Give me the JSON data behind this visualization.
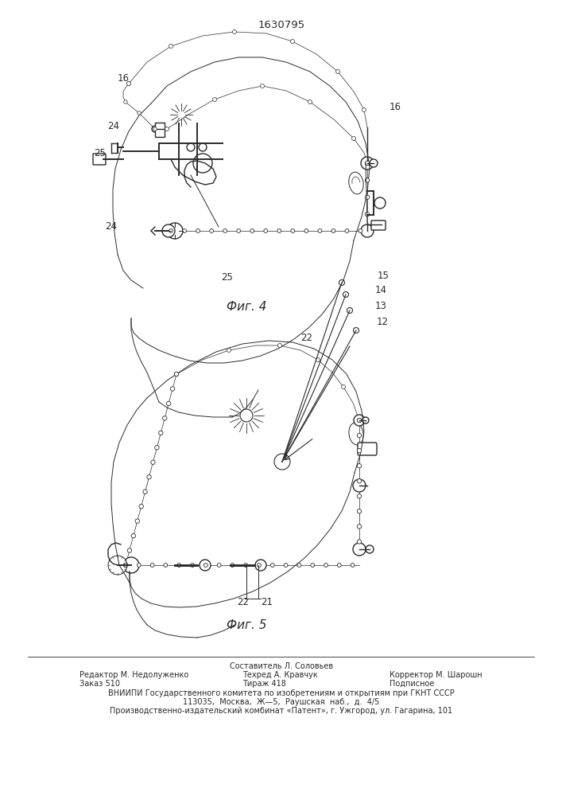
{
  "patent_number": "1630795",
  "fig4_label": "Фиг. 4",
  "fig5_label": "Фиг. 5",
  "footer_line1": "Составитель Л. Соловьев",
  "footer_line2_col1": "Редактор М. Недолуженко",
  "footer_line2_col2": "Техред А. Кравчук",
  "footer_line2_col3": "Корректор М. Шарошн",
  "footer_line3_col1": "Заказ 510",
  "footer_line3_col2": "Тираж 418",
  "footer_line3_col3": "Подписное",
  "footer_org": "ВНИИПИ Государственного комитета по изобретениям и открытиям при ГКНТ СССР",
  "footer_addr1": "113035,  Москва,  Ж—̵5,  Раушская  наб.,  д.  4/5",
  "footer_addr2": "Производственно-издательский комбинат «Патент», г. Ужгород, ул. Гагарина, 101",
  "bg_color": "#ffffff",
  "line_color": "#2a2a2a"
}
